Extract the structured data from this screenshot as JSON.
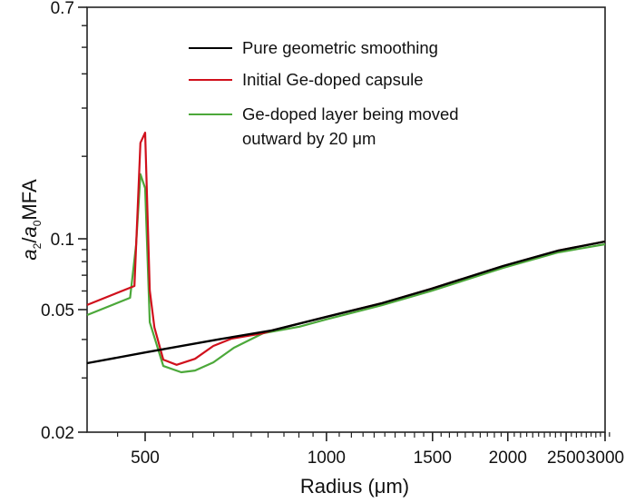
{
  "chart_data": {
    "type": "line",
    "title": "",
    "xlabel": "Radius (μm)",
    "ylabel_parts": {
      "a": "a",
      "sub2": "2",
      "slash": "/",
      "a0": "a",
      "sub0": "0",
      "suffix": "MFA"
    },
    "ylabel": "a2/a0 MFA",
    "xscale": "log",
    "yscale": "log",
    "xlim": [
      400,
      3000
    ],
    "ylim": [
      0.02,
      0.7
    ],
    "x_ticks": [
      {
        "value": 500,
        "label": "500"
      },
      {
        "value": 1000,
        "label": "1000"
      },
      {
        "value": 1500,
        "label": "1500"
      },
      {
        "value": 2000,
        "label": "2000"
      },
      {
        "value": 2500,
        "label": "2500"
      },
      {
        "value": 3000,
        "label": "3000"
      }
    ],
    "y_ticks": [
      {
        "value": 0.7,
        "label": "0.7"
      },
      {
        "value": 0.1,
        "label": "0.1"
      },
      {
        "value": 0.05,
        "label": "0.05"
      },
      {
        "value": 0.02,
        "label": "0.02"
      }
    ],
    "grid": false,
    "legend_position": "top-center",
    "series": [
      {
        "name": "Pure geometric smoothing",
        "color": "#000000",
        "x": [
          400,
          500,
          660,
          812,
          1000,
          1235,
          1492,
          1964,
          2425,
          3000
        ],
        "y": [
          0.0335,
          0.0363,
          0.04,
          0.0428,
          0.0474,
          0.0532,
          0.0613,
          0.0766,
          0.0891,
          0.0974
        ]
      },
      {
        "name": "Initial Ge-doped capsule",
        "color": "#d0101c",
        "x": [
          400,
          480,
          491,
          500,
          509,
          518,
          536,
          564,
          605,
          649,
          695,
          785,
          812,
          1000,
          1235,
          1492,
          1964,
          2425,
          3000
        ],
        "y": [
          0.0523,
          0.063,
          0.224,
          0.244,
          0.0603,
          0.0438,
          0.0344,
          0.0331,
          0.0346,
          0.0381,
          0.0402,
          0.0419,
          0.0428,
          0.0474,
          0.0532,
          0.0613,
          0.0766,
          0.0891,
          0.0974
        ]
      },
      {
        "name": "Ge-doped layer being moved outward by 20 μm",
        "color": "#4ca83a",
        "x": [
          400,
          472,
          483,
          491,
          500,
          509,
          536,
          574,
          605,
          649,
          702,
          785,
          902,
          1000,
          1235,
          1492,
          1964,
          2425,
          3000
        ],
        "y": [
          0.048,
          0.0561,
          0.094,
          0.172,
          0.153,
          0.0455,
          0.0328,
          0.0313,
          0.0317,
          0.0337,
          0.0376,
          0.0419,
          0.044,
          0.0465,
          0.0522,
          0.06,
          0.0752,
          0.0875,
          0.0948
        ]
      }
    ],
    "legend": [
      {
        "label": "Pure geometric smoothing",
        "color": "#000000"
      },
      {
        "label": "Initial Ge-doped capsule",
        "color": "#d0101c"
      },
      {
        "label_line1": "Ge-doped layer being moved",
        "label_line2": "outward by 20 μm",
        "color": "#4ca83a"
      }
    ]
  }
}
